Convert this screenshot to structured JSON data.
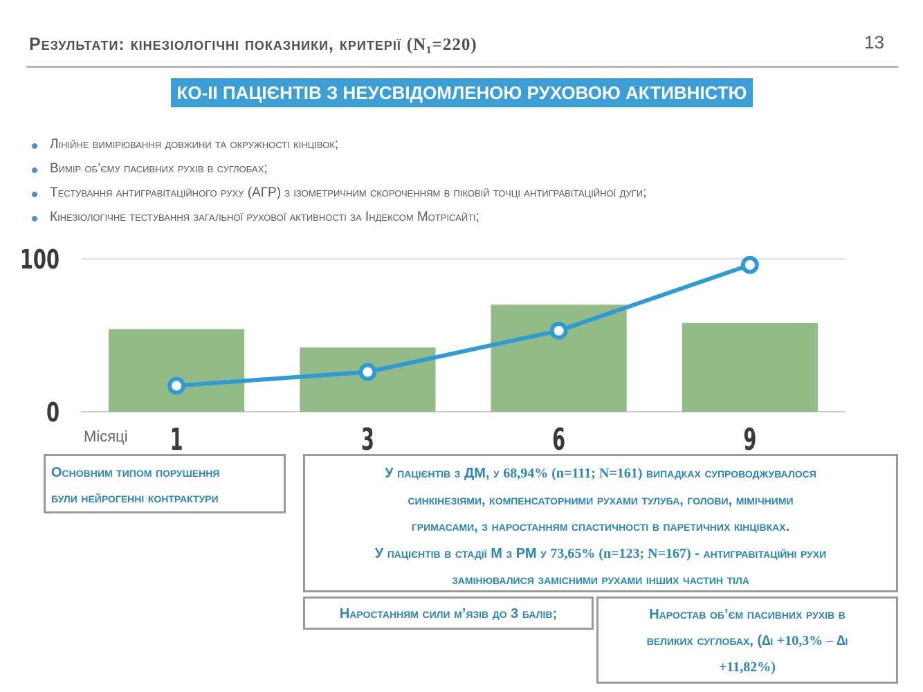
{
  "header": {
    "title_text": "Результати: кінезіологічні показники, критерії",
    "title_n": "(N₁=220)",
    "page_number": "13"
  },
  "banner": "КО-ІІ ПАЦІЄНТІВ З НЕУСВІДОМЛЕНОЮ РУХОВОЮ АКТИВНІСТЮ",
  "bullets": [
    "Лінійне вимірювання довжини та окружності кінцівок;",
    "Вимір об’єму пасивних рухів в суглобах;",
    "Тестування антигравітаційного руху (АГР) з ізометричним скороченням в піковій точці антигравітаційної дуги;",
    "Кінезіологічне тестування загальної рухової активності за Індексом Мотрісайті;"
  ],
  "chart_data": {
    "type": "bar",
    "categories": [
      "1",
      "3",
      "6",
      "9"
    ],
    "series": [
      {
        "type": "bar",
        "values": [
          54,
          42,
          70,
          58
        ],
        "color": "#93bb87"
      },
      {
        "type": "line",
        "values": [
          17,
          26,
          53,
          96
        ],
        "color": "#2f9ad4"
      }
    ],
    "xlabel": "Місяці",
    "ylabel": "",
    "ylim": [
      0,
      100
    ],
    "yticks": [
      "0",
      "100"
    ],
    "grid": true
  },
  "boxes": {
    "box1": [
      "Основним типом порушення",
      "були нейрогенні контрактури"
    ],
    "box2": {
      "line1_a": "У пацієнтів з ДМ, у ",
      "line1_b": "68,94% (n=111; N=161)",
      "line1_c": " випадках супроводжувалося",
      "line2": "синкінезіями, компенсаторними рухами тулуба, голови, мімічними",
      "line3": "гримасами, з наростанням спастичності в паретичних кінцівках.",
      "line4_a": "У пацієнтів в стадії М з РМ у ",
      "line4_b": "73,65% (n=123; N=167)",
      "line4_c": " - антигравітаційні рухи",
      "line5": "замінювалися замісними рухами інших частин тіла"
    },
    "box3": "Наростанням сили м’язів до 3 балів;",
    "box4": {
      "line1": "Наростав об’єм пасивних рухів в",
      "line2_a": "великих суглобах, (∆і ",
      "line2_b": "+10,3% – ",
      "line2_c": "∆і",
      "line3": "+11,82%)"
    }
  },
  "colors": {
    "accent": "#3b9ed6",
    "bars": "#93bb87",
    "line": "#2f9ad4",
    "box_text": "#2b86b8",
    "border": "#9a9a9a"
  }
}
